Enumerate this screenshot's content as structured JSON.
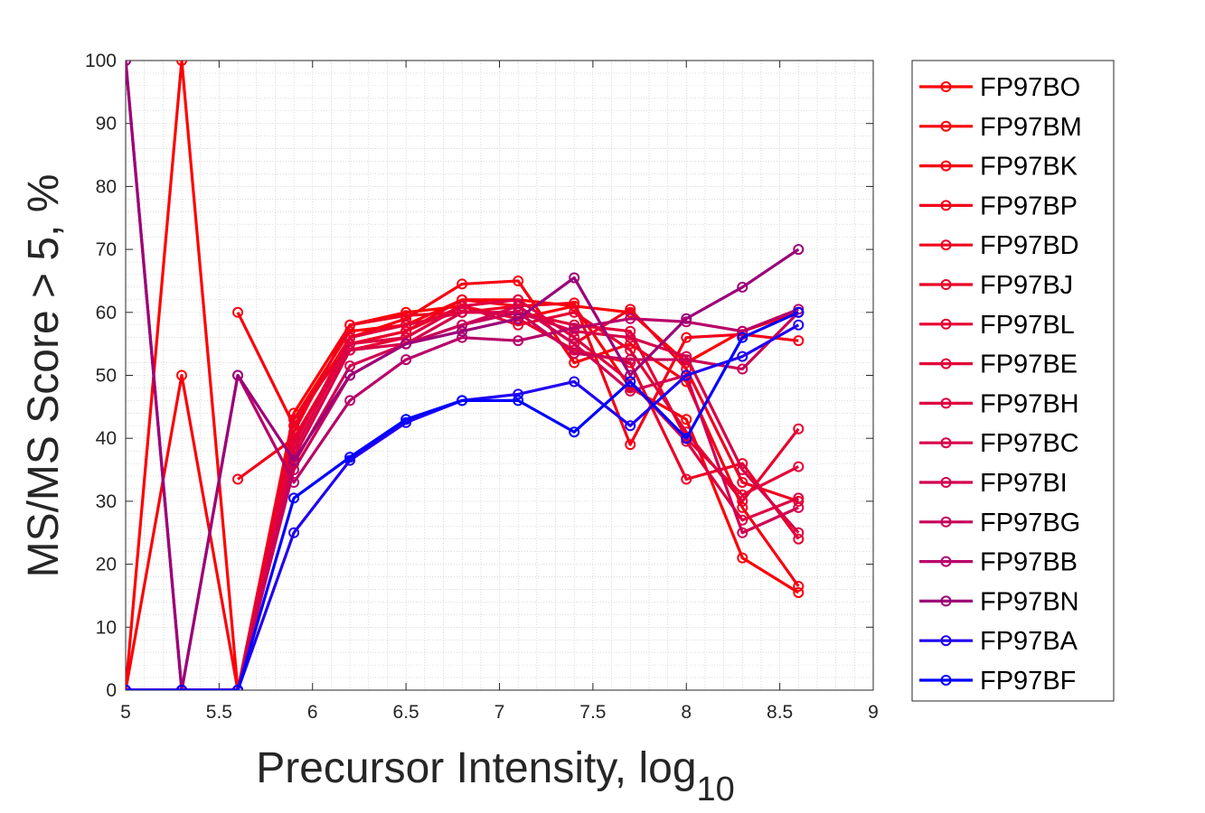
{
  "chart_data": {
    "type": "line",
    "xlabel": "Precursor Intensity, log",
    "xlabel_subscript": "10",
    "ylabel": "MS/MS Score > 5,  %",
    "xlim": [
      5,
      9
    ],
    "ylim": [
      0,
      100
    ],
    "xticks": [
      "5",
      "5.5",
      "6",
      "6.5",
      "7",
      "7.5",
      "8",
      "8.5",
      "9"
    ],
    "yticks": [
      "0",
      "10",
      "20",
      "30",
      "40",
      "50",
      "60",
      "70",
      "80",
      "90",
      "100"
    ],
    "grid": "minor dotted",
    "legend_position": "outside-right",
    "x": [
      5,
      5.3,
      5.6,
      5.9,
      6.2,
      6.5,
      6.8,
      7.1,
      7.4,
      7.7,
      8,
      8.3,
      8.6
    ],
    "series": [
      {
        "name": "FP97BO",
        "color": "#ff0000",
        "values": [
          0,
          100,
          0,
          44,
          58,
          60,
          61,
          59,
          61,
          60,
          52,
          57,
          60
        ]
      },
      {
        "name": "FP97BM",
        "color": "#fb0008",
        "values": [
          0,
          50,
          0,
          43,
          57,
          58,
          62,
          62,
          61,
          48,
          43,
          21,
          15.5
        ]
      },
      {
        "name": "FP97BK",
        "color": "#f70010",
        "values": [
          null,
          null,
          60,
          42,
          56,
          59,
          64.5,
          65,
          52,
          55,
          49,
          29,
          16.5
        ]
      },
      {
        "name": "FP97BP",
        "color": "#f30018",
        "values": [
          null,
          null,
          33.5,
          40,
          55,
          57,
          62,
          61,
          61.5,
          39,
          56,
          56.5,
          55.5
        ]
      },
      {
        "name": "FP97BD",
        "color": "#ef0020",
        "values": [
          0,
          0,
          0,
          41,
          58,
          59.5,
          60,
          61,
          55,
          60.5,
          51,
          33,
          30
        ]
      },
      {
        "name": "FP97BJ",
        "color": "#eb0028",
        "values": [
          0,
          0,
          0,
          43,
          55,
          57,
          61,
          59,
          54,
          52,
          33.5,
          36,
          24
        ]
      },
      {
        "name": "FP97BL",
        "color": "#e70030",
        "values": [
          0,
          0,
          0,
          40,
          54,
          56,
          61,
          58,
          60,
          54,
          41,
          30,
          41.5
        ]
      },
      {
        "name": "FP97BE",
        "color": "#e20038",
        "values": [
          0,
          0,
          0,
          39,
          56,
          58,
          60,
          60,
          58,
          57,
          40,
          31,
          35.5
        ]
      },
      {
        "name": "FP97BH",
        "color": "#de0040",
        "values": [
          0,
          0,
          0,
          38,
          55,
          56,
          61,
          62,
          56,
          49,
          39.5,
          27,
          30.5
        ]
      },
      {
        "name": "FP97BC",
        "color": "#d80048",
        "values": [
          0,
          0,
          0,
          37,
          54,
          55,
          60,
          60,
          57,
          56,
          53,
          35,
          25
        ]
      },
      {
        "name": "FP97BI",
        "color": "#d20050",
        "values": [
          0,
          0,
          0,
          36,
          51.5,
          55,
          58,
          61,
          55,
          47.5,
          50,
          25,
          29
        ]
      },
      {
        "name": "FP97BG",
        "color": "#c80058",
        "values": [
          0,
          0,
          0,
          35,
          50,
          55,
          58,
          60,
          53.5,
          52.5,
          52.5,
          51,
          60
        ]
      },
      {
        "name": "FP97BB",
        "color": "#b80068",
        "values": [
          100,
          0,
          50,
          33,
          46,
          52.5,
          56,
          55.5,
          57.5,
          59,
          58.5,
          57,
          60.5
        ]
      },
      {
        "name": "FP97BN",
        "color": "#9c0078",
        "values": [
          100,
          0,
          50,
          36.5,
          50,
          55,
          57,
          59,
          65.5,
          50,
          59,
          64,
          70
        ]
      },
      {
        "name": "FP97BA",
        "color": "#2000f0",
        "values": [
          0,
          0,
          0,
          25,
          36.5,
          42.5,
          46,
          47,
          49,
          42,
          50,
          53,
          58
        ]
      },
      {
        "name": "FP97BF",
        "color": "#0000ff",
        "values": [
          0,
          0,
          0,
          30.5,
          37,
          43,
          46,
          46,
          41,
          49,
          40,
          56,
          60
        ]
      }
    ]
  }
}
